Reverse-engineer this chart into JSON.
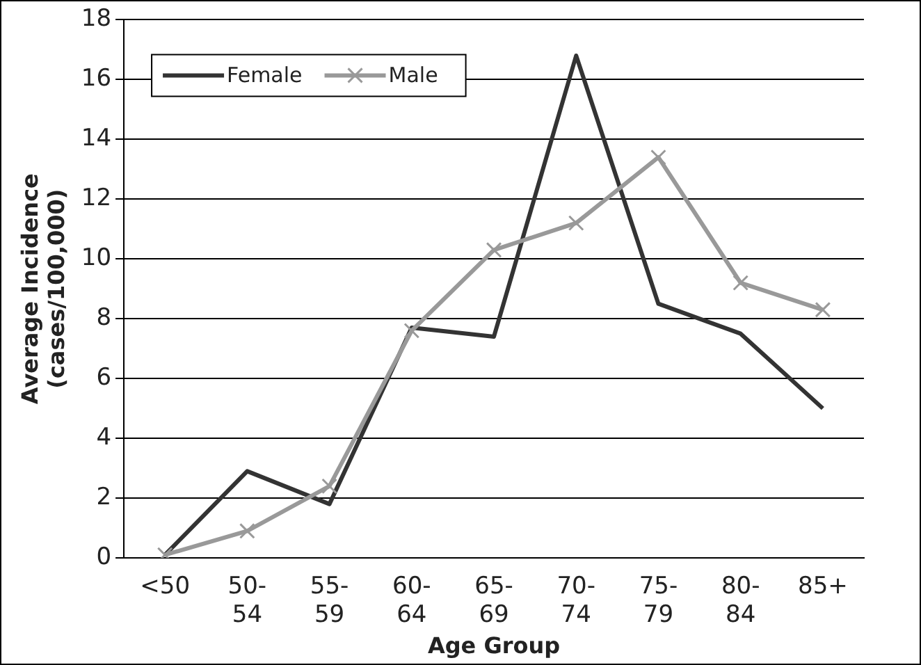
{
  "chart_data": {
    "type": "line",
    "xlabel": "Age Group",
    "ylabel": "Average Incidence\n(cases/100,000)",
    "categories": [
      "<50",
      "50-54",
      "55-59",
      "60-64",
      "65-69",
      "70-74",
      "75-79",
      "80-84",
      "85+"
    ],
    "series": [
      {
        "name": "Female",
        "color": "#333333",
        "marker": "none",
        "values": [
          0.1,
          2.9,
          1.8,
          7.7,
          7.4,
          16.8,
          8.5,
          7.5,
          5.0
        ]
      },
      {
        "name": "Male",
        "color": "#999999",
        "marker": "cross",
        "values": [
          0.1,
          0.9,
          2.4,
          7.6,
          10.3,
          11.2,
          13.4,
          9.2,
          8.3
        ]
      }
    ],
    "ylim": [
      0,
      18
    ],
    "yticks": [
      0,
      2,
      4,
      6,
      8,
      10,
      12,
      14,
      16,
      18
    ],
    "grid": "y",
    "legend": "top left",
    "line_style": "solid"
  }
}
